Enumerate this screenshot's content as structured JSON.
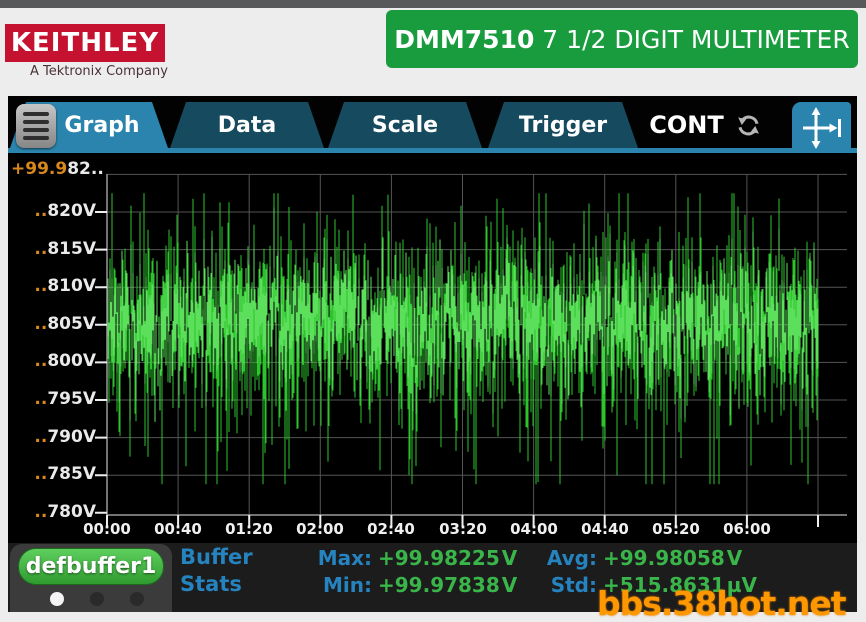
{
  "header": {
    "logo_text": "KEITHLEY",
    "logo_tagline": "A Tektronix Company",
    "banner_model": "DMM7510",
    "banner_title": " 7 1/2 DIGIT MULTIMETER"
  },
  "tabbar": {
    "tabs": [
      {
        "label": "Graph",
        "active": true
      },
      {
        "label": "Data",
        "active": false
      },
      {
        "label": "Scale",
        "active": false
      },
      {
        "label": "Trigger",
        "active": false
      }
    ],
    "trigger_status": "CONT"
  },
  "buffer": {
    "name": "defbuffer1",
    "pages": 3,
    "active_page": 0,
    "stats_label_line1": "Buffer",
    "stats_label_line2": "Stats",
    "stats": [
      {
        "label": "Max:",
        "value": "+99.98225",
        "unit": "V"
      },
      {
        "label": "Min:",
        "value": "+99.97838",
        "unit": "V"
      },
      {
        "label": "Avg:",
        "value": "+99.98058",
        "unit": "V"
      },
      {
        "label": "Std:",
        "value": "+515.8631",
        "unit": "µV"
      }
    ]
  },
  "chart_data": {
    "type": "line",
    "title": "",
    "xlabel": "",
    "ylabel": "",
    "background": "#000000",
    "grid": true,
    "trace_color": "#2dc32d",
    "trace_core_color": "#5ce05c",
    "x_tick_labels": [
      "00:00",
      "00:40",
      "01:20",
      "02:00",
      "02:40",
      "03:20",
      "04:00",
      "04:40",
      "05:20",
      "06:00"
    ],
    "seconds_per_division": 40,
    "y_axis_top_label": {
      "prefix": "+99.9",
      "suffix": "82.."
    },
    "y_tick_labels": [
      {
        "prefix": "..",
        "label": "820V",
        "value": 99.982
      },
      {
        "prefix": "..",
        "label": "815V",
        "value": 99.9815
      },
      {
        "prefix": "..",
        "label": "810V",
        "value": 99.981
      },
      {
        "prefix": "..",
        "label": "805V",
        "value": 99.9805
      },
      {
        "prefix": "..",
        "label": "800V",
        "value": 99.98
      },
      {
        "prefix": "..",
        "label": "795V",
        "value": 99.9795
      },
      {
        "prefix": "..",
        "label": "790V",
        "value": 99.979
      },
      {
        "prefix": "..",
        "label": "785V",
        "value": 99.9785
      },
      {
        "prefix": "..",
        "label": "780V",
        "value": 99.978
      }
    ],
    "y_range_volts": [
      99.978,
      99.9825
    ],
    "stats": {
      "max_V": 99.98225,
      "min_V": 99.97838,
      "avg_V": 99.98058,
      "std_uV": 515.8631
    },
    "series": [
      {
        "name": "defbuffer1",
        "note": "dense DCV noise band; per-column min/max synthesized from on-screen stats",
        "synth": {
          "seed": 1337,
          "columns": 711,
          "mean": 99.98058,
          "jitter_sigma": 0.00032,
          "half_up_sigma": 0.00042,
          "half_down_sigma": 0.00058,
          "spike_up_prob": 0.03,
          "spike_down_prob": 0.055,
          "spike_up_mag": 0.0013,
          "spike_down_mag": 0.0016,
          "clip_min": 99.97838,
          "clip_max": 99.98225
        }
      }
    ]
  },
  "watermark": "bbs.38hot.net",
  "colors": {
    "accent_blue": "#2b84ad",
    "tab_inactive": "#164a5e",
    "banner_green": "#189c3e",
    "keithley_red": "#c41230",
    "stat_label_blue": "#2583c0",
    "stat_value_green": "#39b54a",
    "axis_prefix_orange": "#d8891e",
    "trace_green": "#2dc32d",
    "watermark_orange": "#ff9800"
  }
}
